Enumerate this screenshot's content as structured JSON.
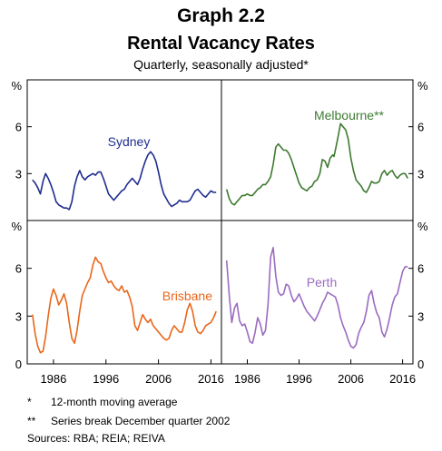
{
  "header": {
    "title": "Graph 2.2",
    "subtitle": "Rental Vacancy Rates",
    "note": "Quarterly, seasonally adjusted*"
  },
  "footnotes": [
    {
      "mark": "*",
      "text": "12-month moving average"
    },
    {
      "mark": "**",
      "text": "Series break December quarter 2002"
    }
  ],
  "sources": "Sources:  RBA; REIA; REIVA",
  "chart_data": {
    "type": "line",
    "unit_label": "%",
    "y_ticks": [
      0,
      3,
      6
    ],
    "y_tick_labels": [
      "0",
      "3",
      "6"
    ],
    "ylim": [
      0,
      9
    ],
    "xlim": [
      1981,
      2018
    ],
    "x_ticks": [
      1986,
      1996,
      2006,
      2016
    ],
    "x_tick_labels": [
      "1986",
      "1996",
      "2006",
      "2016"
    ],
    "grid": false,
    "panels": [
      {
        "name": "Sydney",
        "color": "#1f2d8f",
        "label_position": "top-center",
        "x": [
          1982.0,
          1982.5,
          1983.0,
          1983.5,
          1984.0,
          1984.5,
          1985.0,
          1985.5,
          1986.0,
          1986.5,
          1987.0,
          1987.5,
          1988.0,
          1988.5,
          1989.0,
          1989.5,
          1990.0,
          1990.5,
          1991.0,
          1991.5,
          1992.0,
          1992.5,
          1993.0,
          1993.5,
          1994.0,
          1994.5,
          1995.0,
          1995.5,
          1996.0,
          1996.5,
          1997.0,
          1997.5,
          1998.0,
          1998.5,
          1999.0,
          1999.5,
          2000.0,
          2000.5,
          2001.0,
          2001.5,
          2002.0,
          2002.5,
          2003.0,
          2003.5,
          2004.0,
          2004.5,
          2005.0,
          2005.5,
          2006.0,
          2006.5,
          2007.0,
          2007.5,
          2008.0,
          2008.5,
          2009.0,
          2009.5,
          2010.0,
          2010.5,
          2011.0,
          2011.5,
          2012.0,
          2012.5,
          2013.0,
          2013.5,
          2014.0,
          2014.5,
          2015.0,
          2015.5,
          2016.0,
          2016.5,
          2017.0
        ],
        "y": [
          2.6,
          2.4,
          2.1,
          1.7,
          2.5,
          3.0,
          2.7,
          2.3,
          1.8,
          1.2,
          1.0,
          0.9,
          0.8,
          0.8,
          0.7,
          1.2,
          2.2,
          2.8,
          3.2,
          2.8,
          2.6,
          2.8,
          2.9,
          3.0,
          2.9,
          3.1,
          3.1,
          2.7,
          2.2,
          1.7,
          1.5,
          1.3,
          1.5,
          1.7,
          1.9,
          2.0,
          2.3,
          2.5,
          2.7,
          2.5,
          2.3,
          2.7,
          3.3,
          3.8,
          4.2,
          4.4,
          4.2,
          3.8,
          3.1,
          2.3,
          1.7,
          1.4,
          1.1,
          0.9,
          1.0,
          1.1,
          1.3,
          1.2,
          1.2,
          1.2,
          1.3,
          1.6,
          1.9,
          2.0,
          1.8,
          1.6,
          1.5,
          1.7,
          1.9,
          1.8,
          1.8
        ]
      },
      {
        "name": "Melbourne**",
        "color": "#3d7a30",
        "label_position": "top-right",
        "x": [
          1982.0,
          1982.5,
          1983.0,
          1983.5,
          1984.0,
          1984.5,
          1985.0,
          1985.5,
          1986.0,
          1986.5,
          1987.0,
          1987.5,
          1988.0,
          1988.5,
          1989.0,
          1989.5,
          1990.0,
          1990.5,
          1991.0,
          1991.5,
          1992.0,
          1992.5,
          1993.0,
          1993.5,
          1994.0,
          1994.5,
          1995.0,
          1995.5,
          1996.0,
          1996.5,
          1997.0,
          1997.5,
          1998.0,
          1998.5,
          1999.0,
          1999.5,
          2000.0,
          2000.5,
          2001.0,
          2001.5,
          2002.0,
          2002.5,
          2002.75,
          2003.0,
          2003.5,
          2004.0,
          2004.5,
          2005.0,
          2005.5,
          2006.0,
          2006.5,
          2007.0,
          2007.5,
          2008.0,
          2008.5,
          2009.0,
          2009.5,
          2010.0,
          2010.5,
          2011.0,
          2011.5,
          2012.0,
          2012.5,
          2013.0,
          2013.5,
          2014.0,
          2014.5,
          2015.0,
          2015.5,
          2016.0,
          2016.5,
          2017.0
        ],
        "y": [
          2.0,
          1.4,
          1.1,
          1.0,
          1.2,
          1.4,
          1.6,
          1.6,
          1.7,
          1.6,
          1.6,
          1.8,
          2.0,
          2.1,
          2.3,
          2.3,
          2.5,
          2.8,
          3.6,
          4.7,
          4.9,
          4.7,
          4.5,
          4.5,
          4.3,
          3.9,
          3.4,
          2.9,
          2.4,
          2.1,
          2.0,
          1.9,
          2.1,
          2.2,
          2.5,
          2.6,
          3.0,
          3.9,
          3.8,
          3.4,
          4.0,
          4.2,
          4.1,
          4.5,
          5.3,
          6.2,
          6.0,
          5.8,
          5.2,
          4.0,
          3.2,
          2.6,
          2.4,
          2.2,
          1.9,
          1.8,
          2.1,
          2.5,
          2.4,
          2.4,
          2.5,
          3.0,
          3.2,
          2.9,
          3.1,
          3.2,
          2.9,
          2.7,
          2.9,
          3.0,
          3.0,
          2.7
        ]
      },
      {
        "name": "Brisbane",
        "color": "#e9661a",
        "label_position": "center-right",
        "x": [
          1982.0,
          1982.5,
          1983.0,
          1983.5,
          1984.0,
          1984.5,
          1985.0,
          1985.5,
          1986.0,
          1986.5,
          1987.0,
          1987.5,
          1988.0,
          1988.5,
          1989.0,
          1989.5,
          1990.0,
          1990.5,
          1991.0,
          1991.5,
          1992.0,
          1992.5,
          1993.0,
          1993.5,
          1994.0,
          1994.5,
          1995.0,
          1995.5,
          1996.0,
          1996.5,
          1997.0,
          1997.5,
          1998.0,
          1998.5,
          1999.0,
          1999.5,
          2000.0,
          2000.5,
          2001.0,
          2001.5,
          2002.0,
          2002.5,
          2003.0,
          2003.5,
          2004.0,
          2004.5,
          2005.0,
          2005.5,
          2006.0,
          2006.5,
          2007.0,
          2007.5,
          2008.0,
          2008.5,
          2009.0,
          2009.5,
          2010.0,
          2010.5,
          2011.0,
          2011.5,
          2012.0,
          2012.5,
          2013.0,
          2013.5,
          2014.0,
          2014.5,
          2015.0,
          2015.5,
          2016.0,
          2016.5,
          2017.0
        ],
        "y": [
          3.1,
          1.9,
          1.1,
          0.7,
          0.8,
          1.7,
          3.0,
          4.1,
          4.7,
          4.3,
          3.7,
          4.0,
          4.4,
          3.8,
          2.6,
          1.6,
          1.3,
          2.1,
          3.3,
          4.3,
          4.7,
          5.1,
          5.4,
          6.2,
          6.7,
          6.4,
          6.3,
          5.8,
          5.4,
          5.1,
          5.2,
          4.9,
          4.7,
          4.6,
          4.9,
          4.5,
          4.6,
          4.2,
          3.6,
          2.4,
          2.1,
          2.6,
          3.1,
          2.8,
          2.6,
          2.8,
          2.4,
          2.2,
          2.0,
          1.8,
          1.6,
          1.5,
          1.6,
          2.1,
          2.4,
          2.2,
          2.0,
          2.0,
          2.6,
          3.4,
          3.8,
          3.3,
          2.4,
          2.0,
          1.9,
          2.1,
          2.4,
          2.5,
          2.6,
          2.9,
          3.3
        ]
      },
      {
        "name": "Perth",
        "color": "#9b6bc0",
        "label_position": "top-center",
        "x": [
          1982.0,
          1982.5,
          1983.0,
          1983.5,
          1984.0,
          1984.5,
          1985.0,
          1985.5,
          1986.0,
          1986.5,
          1987.0,
          1987.5,
          1988.0,
          1988.5,
          1989.0,
          1989.5,
          1990.0,
          1990.5,
          1991.0,
          1991.5,
          1992.0,
          1992.5,
          1993.0,
          1993.5,
          1994.0,
          1994.5,
          1995.0,
          1995.5,
          1996.0,
          1996.5,
          1997.0,
          1997.5,
          1998.0,
          1998.5,
          1999.0,
          1999.5,
          2000.0,
          2000.5,
          2001.0,
          2001.5,
          2002.0,
          2002.5,
          2003.0,
          2003.5,
          2004.0,
          2004.5,
          2005.0,
          2005.5,
          2006.0,
          2006.5,
          2007.0,
          2007.5,
          2008.0,
          2008.5,
          2009.0,
          2009.5,
          2010.0,
          2010.5,
          2011.0,
          2011.5,
          2012.0,
          2012.5,
          2013.0,
          2013.5,
          2014.0,
          2014.5,
          2015.0,
          2015.5,
          2016.0,
          2016.5,
          2017.0
        ],
        "y": [
          6.5,
          4.3,
          2.6,
          3.5,
          3.8,
          2.7,
          2.4,
          2.5,
          2.0,
          1.4,
          1.3,
          2.0,
          2.9,
          2.5,
          1.8,
          2.1,
          3.7,
          6.7,
          7.3,
          5.5,
          4.5,
          4.3,
          4.4,
          5.0,
          4.9,
          4.3,
          3.9,
          4.1,
          4.4,
          4.0,
          3.6,
          3.3,
          3.1,
          2.9,
          2.7,
          3.0,
          3.4,
          3.8,
          4.1,
          4.5,
          4.4,
          4.3,
          4.2,
          3.7,
          2.9,
          2.4,
          2.0,
          1.5,
          1.1,
          1.0,
          1.2,
          1.9,
          2.3,
          2.6,
          3.3,
          4.3,
          4.6,
          3.8,
          3.2,
          2.9,
          2.0,
          1.7,
          2.2,
          2.9,
          3.7,
          4.2,
          4.4,
          5.1,
          5.8,
          6.1,
          6.1
        ]
      }
    ]
  }
}
